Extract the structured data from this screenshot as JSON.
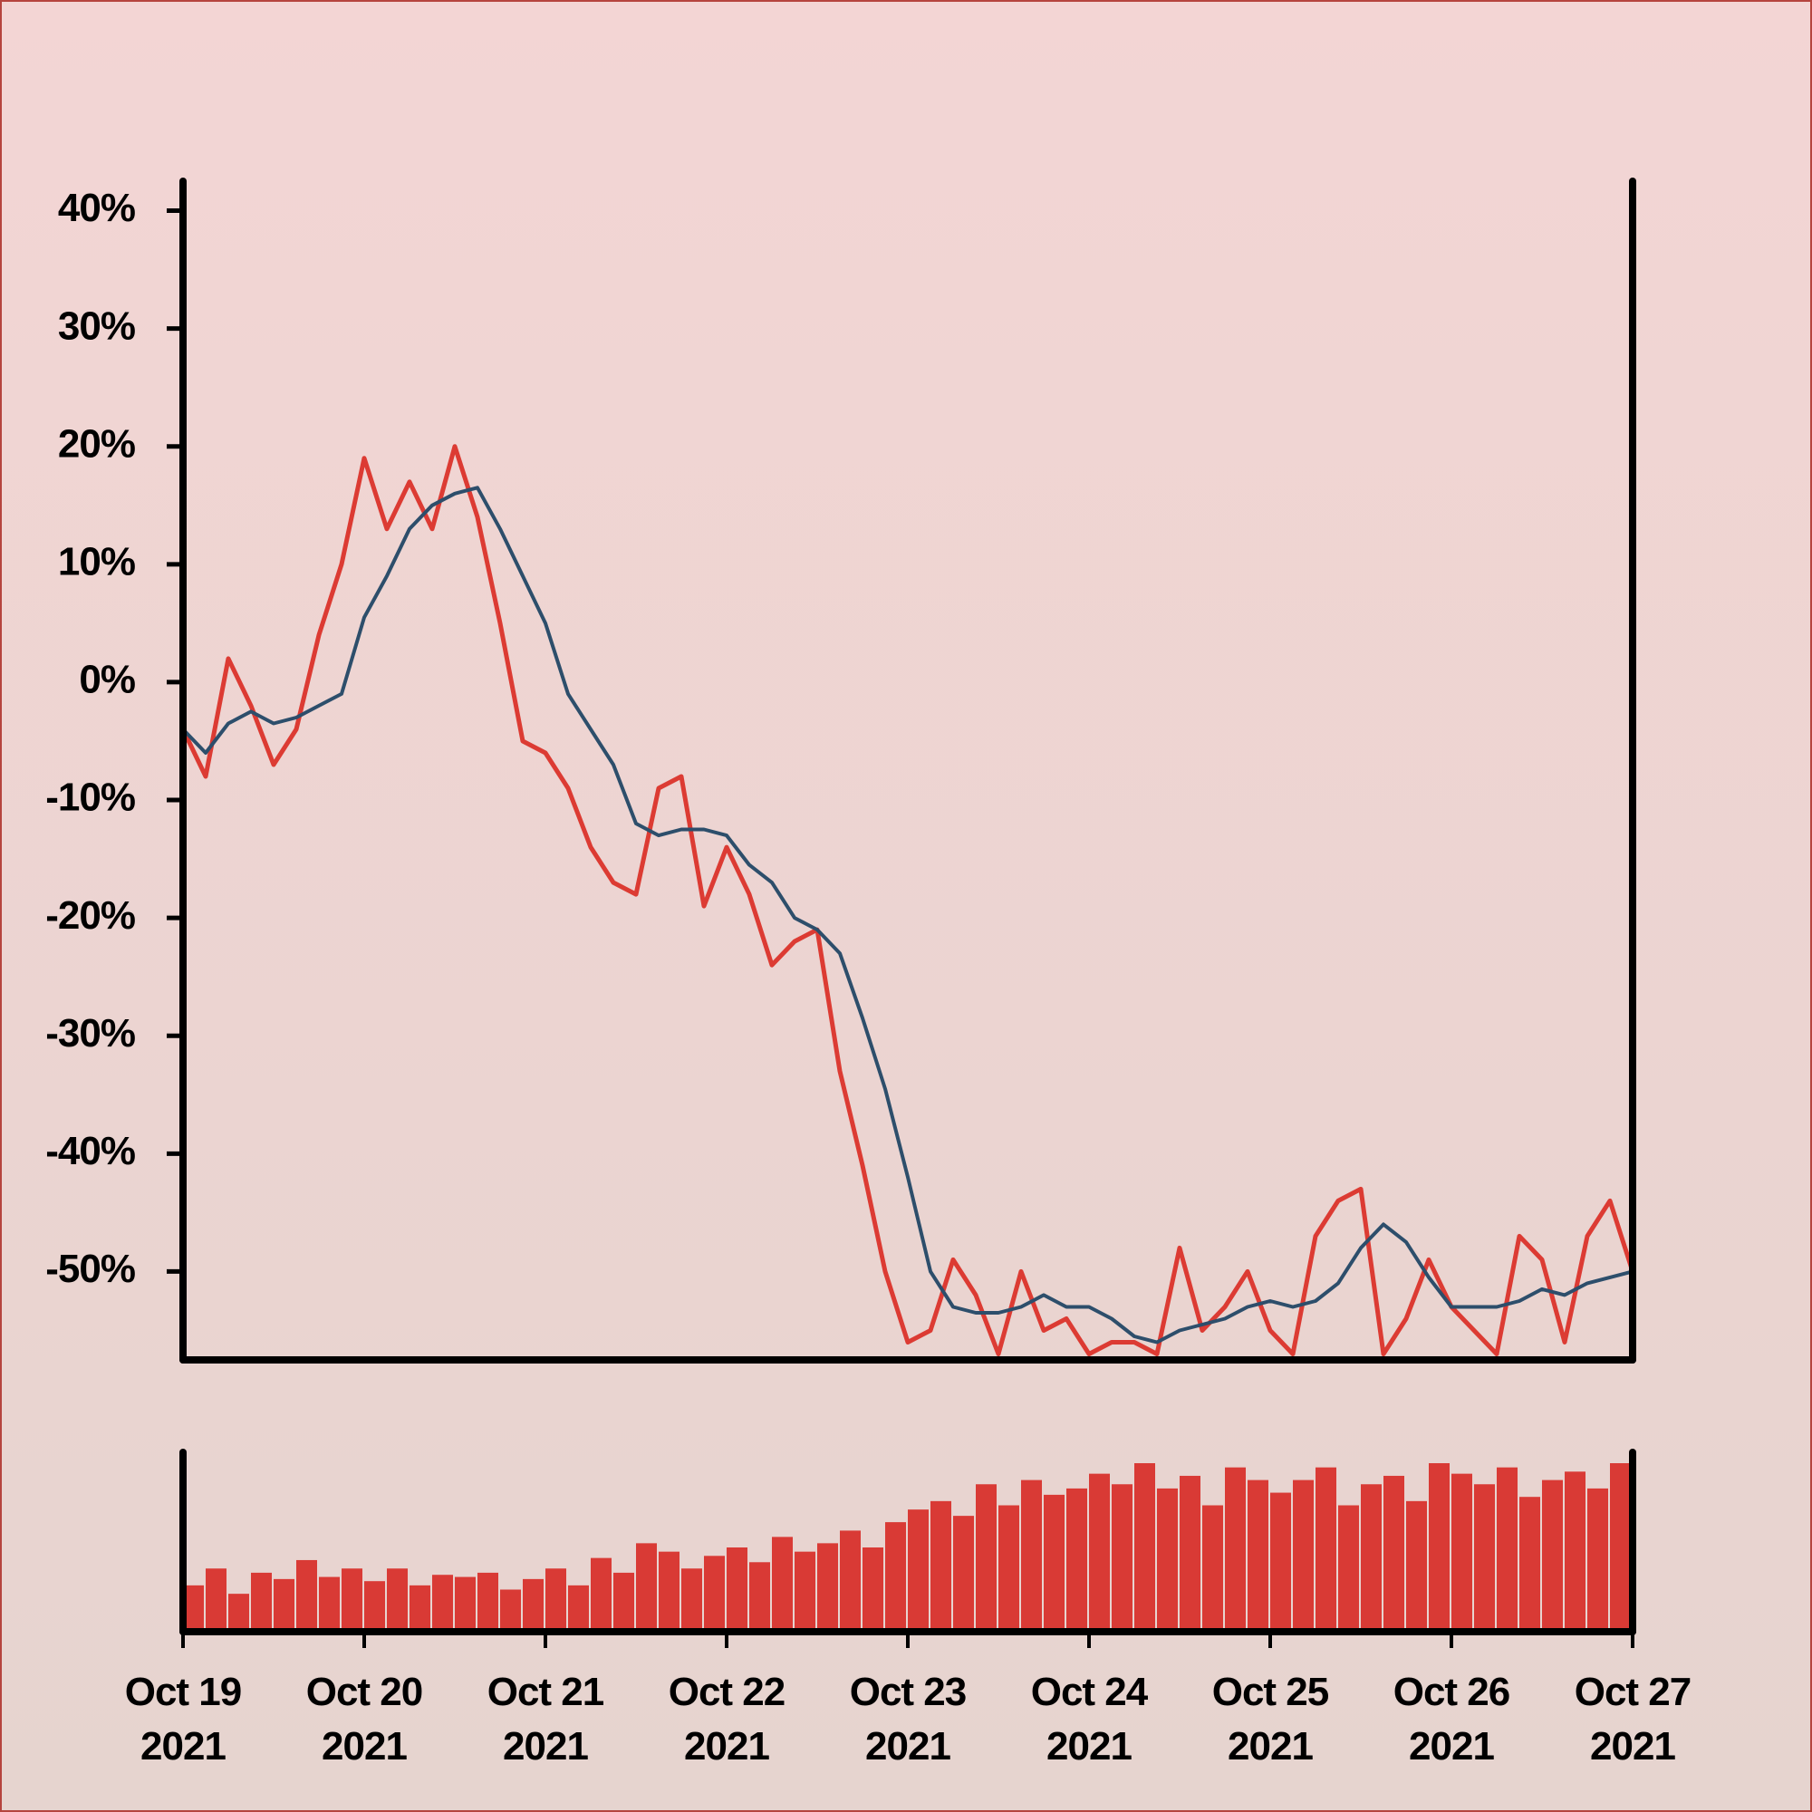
{
  "chart_data": [
    {
      "type": "line",
      "xlim": [
        "2021-10-19T00:00",
        "2021-10-27T00:00"
      ],
      "ylim": [
        -57.5,
        42.5
      ],
      "yticks": [
        {
          "value": 40,
          "label": "40%"
        },
        {
          "value": 30,
          "label": "30%"
        },
        {
          "value": 20,
          "label": "20%"
        },
        {
          "value": 10,
          "label": "10%"
        },
        {
          "value": 0,
          "label": "0%"
        },
        {
          "value": -10,
          "label": "-10%"
        },
        {
          "value": -20,
          "label": "-20%"
        },
        {
          "value": -30,
          "label": "-30%"
        },
        {
          "value": -40,
          "label": "-40%"
        },
        {
          "value": -50,
          "label": "-50%"
        }
      ],
      "x": [
        "2021-10-19T00:00",
        "2021-10-19T03:00",
        "2021-10-19T06:00",
        "2021-10-19T09:00",
        "2021-10-19T12:00",
        "2021-10-19T15:00",
        "2021-10-19T18:00",
        "2021-10-19T21:00",
        "2021-10-20T00:00",
        "2021-10-20T03:00",
        "2021-10-20T06:00",
        "2021-10-20T09:00",
        "2021-10-20T12:00",
        "2021-10-20T15:00",
        "2021-10-20T18:00",
        "2021-10-20T21:00",
        "2021-10-21T00:00",
        "2021-10-21T03:00",
        "2021-10-21T06:00",
        "2021-10-21T09:00",
        "2021-10-21T12:00",
        "2021-10-21T15:00",
        "2021-10-21T18:00",
        "2021-10-21T21:00",
        "2021-10-22T00:00",
        "2021-10-22T03:00",
        "2021-10-22T06:00",
        "2021-10-22T09:00",
        "2021-10-22T12:00",
        "2021-10-22T15:00",
        "2021-10-22T18:00",
        "2021-10-22T21:00",
        "2021-10-23T00:00",
        "2021-10-23T03:00",
        "2021-10-23T06:00",
        "2021-10-23T09:00",
        "2021-10-23T12:00",
        "2021-10-23T15:00",
        "2021-10-23T18:00",
        "2021-10-23T21:00",
        "2021-10-24T00:00",
        "2021-10-24T03:00",
        "2021-10-24T06:00",
        "2021-10-24T09:00",
        "2021-10-24T12:00",
        "2021-10-24T15:00",
        "2021-10-24T18:00",
        "2021-10-24T21:00",
        "2021-10-25T00:00",
        "2021-10-25T03:00",
        "2021-10-25T06:00",
        "2021-10-25T09:00",
        "2021-10-25T12:00",
        "2021-10-25T15:00",
        "2021-10-25T18:00",
        "2021-10-25T21:00",
        "2021-10-26T00:00",
        "2021-10-26T03:00",
        "2021-10-26T06:00",
        "2021-10-26T09:00",
        "2021-10-26T12:00",
        "2021-10-26T15:00",
        "2021-10-26T18:00",
        "2021-10-26T21:00",
        "2021-10-27T00:00"
      ],
      "series": [
        {
          "color": "#dc3b33",
          "width": 5,
          "values": [
            -4,
            -8,
            2,
            -2,
            -7,
            -4,
            4,
            10,
            19,
            13,
            17,
            13,
            20,
            14,
            5,
            -5,
            -6,
            -9,
            -14,
            -17,
            -18,
            -9,
            -8,
            -19,
            -14,
            -18,
            -24,
            -22,
            -21,
            -33,
            -41,
            -50,
            -56,
            -55,
            -49,
            -52,
            -57,
            -50,
            -55,
            -54,
            -57,
            -56,
            -56,
            -57,
            -48,
            -55,
            -53,
            -50,
            -55,
            -57,
            -47,
            -44,
            -43,
            -57,
            -54,
            -49,
            -53,
            -55,
            -57,
            -47,
            -49,
            -56,
            -47,
            -44,
            -50
          ]
        },
        {
          "color": "#2d4e6b",
          "width": 4,
          "values": [
            -4,
            -6,
            -3.5,
            -2.5,
            -3.5,
            -3,
            -2,
            -1,
            5.5,
            9,
            13,
            15,
            16,
            16.5,
            13,
            9,
            5,
            -1,
            -4,
            -7,
            -12,
            -13,
            -12.5,
            -12.5,
            -13,
            -15.5,
            -17,
            -20,
            -21,
            -23,
            -28.5,
            -34.5,
            -42,
            -50,
            -53,
            -53.5,
            -53.5,
            -53,
            -52,
            -53,
            -53,
            -54,
            -55.5,
            -56,
            -55,
            -54.5,
            -54,
            -53,
            -52.5,
            -53,
            -52.5,
            -51,
            -48,
            -46,
            -47.5,
            -50.5,
            -53,
            -53,
            -53,
            -52.5,
            -51.5,
            -52,
            -51,
            -50.5,
            -50
          ]
        }
      ]
    },
    {
      "type": "bar",
      "xlim": [
        "2021-10-19T00:00",
        "2021-10-27T00:00"
      ],
      "bar_hours": 3,
      "color": "#d93a35",
      "xticks": [
        {
          "value": "2021-10-19T00:00",
          "label": "Oct 19 2021"
        },
        {
          "value": "2021-10-20T00:00",
          "label": "Oct 20 2021"
        },
        {
          "value": "2021-10-21T00:00",
          "label": "Oct 21 2021"
        },
        {
          "value": "2021-10-22T00:00",
          "label": "Oct 22 2021"
        },
        {
          "value": "2021-10-23T00:00",
          "label": "Oct 23 2021"
        },
        {
          "value": "2021-10-24T00:00",
          "label": "Oct 24 2021"
        },
        {
          "value": "2021-10-25T00:00",
          "label": "Oct 25 2021"
        },
        {
          "value": "2021-10-26T00:00",
          "label": "Oct 26 2021"
        },
        {
          "value": "2021-10-27T00:00",
          "label": "Oct 27 2021"
        }
      ],
      "x": [
        "2021-10-19T00:00",
        "2021-10-19T03:00",
        "2021-10-19T06:00",
        "2021-10-19T09:00",
        "2021-10-19T12:00",
        "2021-10-19T15:00",
        "2021-10-19T18:00",
        "2021-10-19T21:00",
        "2021-10-20T00:00",
        "2021-10-20T03:00",
        "2021-10-20T06:00",
        "2021-10-20T09:00",
        "2021-10-20T12:00",
        "2021-10-20T15:00",
        "2021-10-20T18:00",
        "2021-10-20T21:00",
        "2021-10-21T00:00",
        "2021-10-21T03:00",
        "2021-10-21T06:00",
        "2021-10-21T09:00",
        "2021-10-21T12:00",
        "2021-10-21T15:00",
        "2021-10-21T18:00",
        "2021-10-21T21:00",
        "2021-10-22T00:00",
        "2021-10-22T03:00",
        "2021-10-22T06:00",
        "2021-10-22T09:00",
        "2021-10-22T12:00",
        "2021-10-22T15:00",
        "2021-10-22T18:00",
        "2021-10-22T21:00",
        "2021-10-23T00:00",
        "2021-10-23T03:00",
        "2021-10-23T06:00",
        "2021-10-23T09:00",
        "2021-10-23T12:00",
        "2021-10-23T15:00",
        "2021-10-23T18:00",
        "2021-10-23T21:00",
        "2021-10-24T00:00",
        "2021-10-24T03:00",
        "2021-10-24T06:00",
        "2021-10-24T09:00",
        "2021-10-24T12:00",
        "2021-10-24T15:00",
        "2021-10-24T18:00",
        "2021-10-24T21:00",
        "2021-10-25T00:00",
        "2021-10-25T03:00",
        "2021-10-25T06:00",
        "2021-10-25T09:00",
        "2021-10-25T12:00",
        "2021-10-25T15:00",
        "2021-10-25T18:00",
        "2021-10-25T21:00",
        "2021-10-26T00:00",
        "2021-10-26T03:00",
        "2021-10-26T06:00",
        "2021-10-26T09:00",
        "2021-10-26T12:00",
        "2021-10-26T15:00",
        "2021-10-26T18:00",
        "2021-10-26T21:00"
      ],
      "values": [
        22,
        30,
        18,
        28,
        25,
        34,
        26,
        30,
        24,
        30,
        22,
        27,
        26,
        28,
        20,
        25,
        30,
        22,
        35,
        28,
        42,
        38,
        30,
        36,
        40,
        33,
        45,
        38,
        42,
        48,
        40,
        52,
        58,
        62,
        55,
        70,
        60,
        72,
        65,
        68,
        75,
        70,
        80,
        68,
        74,
        60,
        78,
        72,
        66,
        72,
        78,
        60,
        70,
        74,
        62,
        80,
        75,
        70,
        78,
        64,
        72,
        76,
        68,
        80
      ]
    }
  ]
}
